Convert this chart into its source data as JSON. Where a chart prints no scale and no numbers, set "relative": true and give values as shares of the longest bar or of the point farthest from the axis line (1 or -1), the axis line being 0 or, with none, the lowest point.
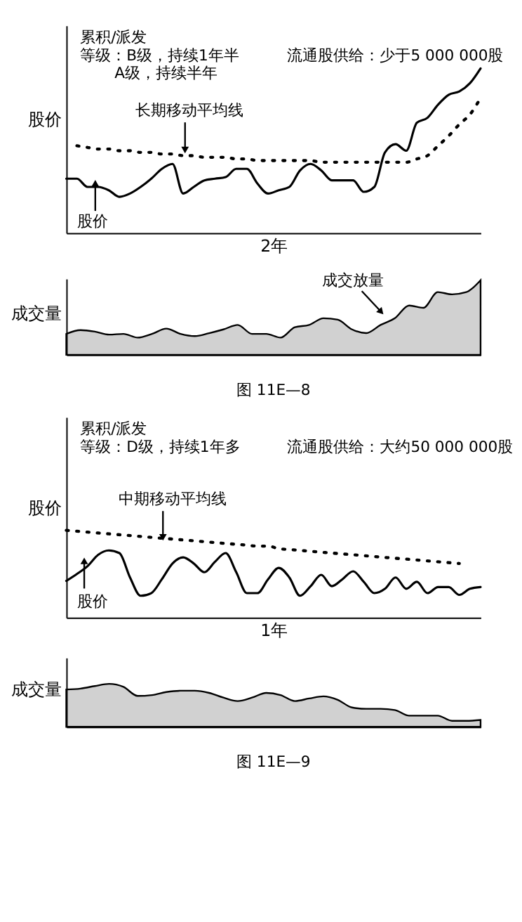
{
  "chart_data": [
    {
      "type": "line",
      "relative": true,
      "xlabel": "2年",
      "ylabel": "股价",
      "tick_labels": false,
      "categories": [
        null,
        null,
        null,
        null,
        null,
        null,
        null,
        null,
        null,
        null,
        null,
        null,
        null,
        null,
        null,
        null,
        null,
        null,
        null,
        null,
        null,
        null,
        null,
        null,
        null,
        null,
        null,
        null,
        null,
        null,
        null,
        null,
        null,
        null,
        null,
        null,
        null,
        null,
        null,
        null
      ],
      "series": [
        {
          "color": "#000000",
          "line_style": "solid",
          "values": [
            0.33,
            0.33,
            0.28,
            0.28,
            0.26,
            0.22,
            0.24,
            0.28,
            0.33,
            0.39,
            0.42,
            0.24,
            0.28,
            0.32,
            0.33,
            0.34,
            0.39,
            0.39,
            0.3,
            0.24,
            0.26,
            0.28,
            0.38,
            0.42,
            0.38,
            0.32,
            0.32,
            0.32,
            0.25,
            0.28,
            0.49,
            0.54,
            0.5,
            0.67,
            0.7,
            0.78,
            0.84,
            0.86,
            0.91,
            1.0
          ]
        },
        {
          "color": "#000000",
          "line_style": "dotted",
          "values": [
            null,
            0.53,
            0.52,
            0.51,
            0.51,
            0.5,
            0.5,
            0.49,
            0.49,
            0.48,
            0.48,
            0.47,
            0.47,
            0.46,
            0.46,
            0.46,
            0.45,
            0.45,
            0.44,
            0.44,
            0.44,
            0.44,
            0.44,
            0.44,
            0.43,
            0.43,
            0.43,
            0.43,
            0.43,
            0.43,
            0.43,
            0.43,
            0.43,
            0.45,
            0.47,
            0.53,
            0.59,
            0.66,
            0.72,
            0.82
          ]
        }
      ],
      "annotations": [
        "累积/派发",
        "等级：B级，持续1年半",
        "A级，持续半年",
        "流通股供给：少于5 000 000股",
        "长期移动平均线",
        "股价"
      ]
    },
    {
      "type": "area",
      "relative": true,
      "ylabel": "成交量",
      "tick_labels": false,
      "categories": [
        null,
        null,
        null,
        null,
        null,
        null,
        null,
        null,
        null,
        null,
        null,
        null,
        null,
        null,
        null,
        null,
        null,
        null,
        null,
        null,
        null,
        null,
        null,
        null,
        null,
        null,
        null,
        null,
        null,
        null
      ],
      "series": [
        {
          "color": "#000000",
          "values": [
            0.28,
            0.33,
            0.31,
            0.27,
            0.28,
            0.23,
            0.28,
            0.35,
            0.28,
            0.25,
            0.29,
            0.34,
            0.4,
            0.28,
            0.28,
            0.23,
            0.37,
            0.4,
            0.49,
            0.47,
            0.34,
            0.29,
            0.4,
            0.49,
            0.66,
            0.63,
            0.84,
            0.81,
            0.84,
            1.0
          ]
        }
      ],
      "annotations": [
        "成交放量",
        "图 11E—8"
      ]
    },
    {
      "type": "line",
      "relative": true,
      "xlabel": "1年",
      "ylabel": "股价",
      "tick_labels": false,
      "categories": [
        null,
        null,
        null,
        null,
        null,
        null,
        null,
        null,
        null,
        null,
        null,
        null,
        null,
        null,
        null,
        null,
        null,
        null,
        null,
        null,
        null,
        null,
        null,
        null,
        null,
        null,
        null,
        null,
        null,
        null,
        null,
        null,
        null,
        null,
        null,
        null,
        null,
        null,
        null,
        null
      ],
      "series": [
        {
          "color": "#000000",
          "line_style": "solid",
          "values": [
            0.42,
            0.5,
            0.59,
            0.72,
            0.77,
            0.74,
            0.46,
            0.25,
            0.28,
            0.44,
            0.62,
            0.69,
            0.62,
            0.52,
            0.64,
            0.74,
            0.52,
            0.28,
            0.28,
            0.44,
            0.57,
            0.46,
            0.25,
            0.36,
            0.49,
            0.36,
            0.44,
            0.53,
            0.41,
            0.28,
            0.33,
            0.46,
            0.33,
            0.41,
            0.28,
            0.35,
            0.35,
            0.26,
            0.33,
            0.35
          ]
        },
        {
          "color": "#000000",
          "line_style": "dotted",
          "values": [
            1.0,
            0.99,
            0.98,
            0.97,
            0.96,
            0.95,
            0.94,
            0.93,
            0.92,
            0.91,
            0.9,
            0.89,
            0.88,
            0.87,
            0.86,
            0.85,
            0.84,
            0.83,
            0.82,
            0.82,
            0.79,
            0.78,
            0.77,
            0.76,
            0.75,
            0.74,
            0.73,
            0.72,
            0.71,
            0.7,
            0.69,
            0.68,
            0.67,
            0.66,
            0.65,
            0.64,
            0.63,
            0.62,
            null,
            null
          ]
        }
      ],
      "annotations": [
        "累积/派发",
        "等级：D级，持续1年多",
        "流通股供给：大约50 000 000股",
        "中期移动平均线",
        "股价"
      ]
    },
    {
      "type": "area",
      "relative": true,
      "ylabel": "成交量",
      "tick_labels": false,
      "categories": [
        null,
        null,
        null,
        null,
        null,
        null,
        null,
        null,
        null,
        null,
        null,
        null,
        null,
        null,
        null,
        null,
        null,
        null,
        null,
        null,
        null,
        null,
        null,
        null,
        null,
        null,
        null,
        null,
        null,
        null
      ],
      "series": [
        {
          "color": "#000000",
          "values": [
            0.87,
            0.89,
            0.95,
            1.0,
            0.93,
            0.72,
            0.74,
            0.81,
            0.84,
            0.84,
            0.79,
            0.68,
            0.6,
            0.68,
            0.79,
            0.74,
            0.6,
            0.66,
            0.71,
            0.63,
            0.45,
            0.42,
            0.42,
            0.39,
            0.26,
            0.26,
            0.26,
            0.14,
            0.14,
            0.16
          ]
        }
      ],
      "annotations": [
        "图 11E—9"
      ]
    }
  ]
}
